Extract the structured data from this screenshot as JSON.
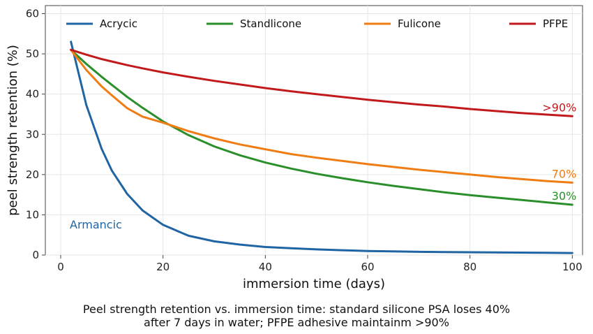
{
  "chart_data": {
    "type": "line",
    "xlabel": "immersion time (days)",
    "ylabel": "peel strength retention (%)",
    "xlim": [
      -3,
      102
    ],
    "ylim": [
      0,
      62
    ],
    "xticks": [
      0,
      20,
      40,
      60,
      80,
      100
    ],
    "yticks": [
      0,
      10,
      20,
      30,
      40,
      50,
      60
    ],
    "grid": true,
    "legend_position": "top",
    "x": [
      2,
      5,
      8,
      10,
      13,
      16,
      20,
      25,
      30,
      35,
      40,
      45,
      50,
      55,
      60,
      65,
      70,
      75,
      80,
      85,
      90,
      95,
      100
    ],
    "series": [
      {
        "name": "Acrycic",
        "color": "#1f64a3",
        "values": [
          53,
          37.3,
          26.4,
          21.0,
          15.2,
          11.1,
          7.5,
          4.8,
          3.4,
          2.6,
          2.0,
          1.7,
          1.4,
          1.2,
          1.0,
          0.9,
          0.8,
          0.75,
          0.7,
          0.65,
          0.6,
          0.55,
          0.5
        ],
        "end_label": "",
        "annotation": "Armancic"
      },
      {
        "name": "Standlicone",
        "color": "#2a8f2a",
        "values": [
          51,
          47.5,
          44.3,
          42.3,
          39.3,
          36.6,
          33.2,
          29.8,
          27.0,
          24.8,
          23.0,
          21.5,
          20.2,
          19.1,
          18.1,
          17.2,
          16.4,
          15.6,
          14.9,
          14.3,
          13.7,
          13.1,
          12.5
        ],
        "end_label": "30%"
      },
      {
        "name": "Fulicone",
        "color": "#f07d14",
        "values": [
          51,
          46.0,
          41.9,
          39.7,
          36.5,
          34.4,
          32.9,
          30.8,
          29.0,
          27.5,
          26.3,
          25.1,
          24.2,
          23.4,
          22.6,
          21.9,
          21.2,
          20.6,
          20.0,
          19.4,
          18.9,
          18.4,
          18.0
        ],
        "end_label": "70%"
      },
      {
        "name": "PFPE",
        "color": "#c21a1c",
        "values": [
          51,
          49.8,
          48.7,
          48.1,
          47.2,
          46.4,
          45.4,
          44.3,
          43.3,
          42.4,
          41.5,
          40.7,
          40.0,
          39.3,
          38.6,
          38.0,
          37.4,
          36.9,
          36.3,
          35.8,
          35.3,
          34.9,
          34.5
        ],
        "end_label": ">90%"
      }
    ]
  },
  "caption_lines": [
    "Peel strength retention vs. immersion time: standard silicone PSA loses 40%",
    "after 7 days in water; PFPE adhesive maintainm >90%"
  ]
}
